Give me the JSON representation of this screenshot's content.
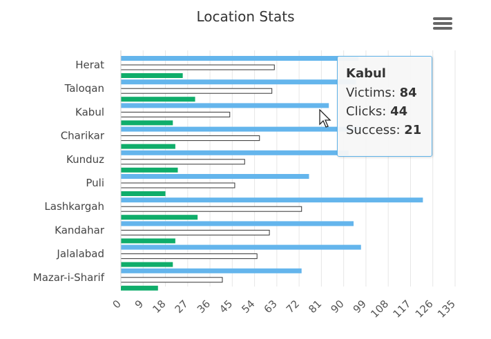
{
  "chart_data": {
    "type": "bar",
    "orientation": "horizontal",
    "title": "Location Stats",
    "categories": [
      "Herat",
      "Taloqan",
      "Kabul",
      "Charikar",
      "Kunduz",
      "Puli",
      "Lashkargah",
      "Kandahar",
      "Jalalabad",
      "Mazar-i-Sharif"
    ],
    "series": [
      {
        "name": "Victims",
        "color": "#64b5ec",
        "values": [
          96,
          95,
          84,
          97,
          92,
          76,
          122,
          94,
          97,
          73
        ]
      },
      {
        "name": "Clicks",
        "color": "#ffffff",
        "values": [
          62,
          61,
          44,
          56,
          50,
          46,
          73,
          60,
          55,
          41
        ]
      },
      {
        "name": "Success",
        "color": "#0fad6a",
        "values": [
          25,
          30,
          21,
          22,
          23,
          18,
          31,
          22,
          21,
          15
        ]
      }
    ],
    "xlim": [
      0,
      135
    ],
    "xticks": [
      0,
      9,
      18,
      27,
      36,
      45,
      54,
      63,
      72,
      81,
      90,
      99,
      108,
      117,
      126,
      135
    ],
    "grid": true,
    "legend": "none"
  },
  "tooltip": {
    "category": "Kabul",
    "rows": [
      {
        "label": "Victims: ",
        "value": "84"
      },
      {
        "label": "Clicks: ",
        "value": "44"
      },
      {
        "label": "Success: ",
        "value": "21"
      }
    ]
  },
  "icons": {
    "menu": "hamburger-menu-icon",
    "cursor": "mouse-pointer-icon"
  }
}
